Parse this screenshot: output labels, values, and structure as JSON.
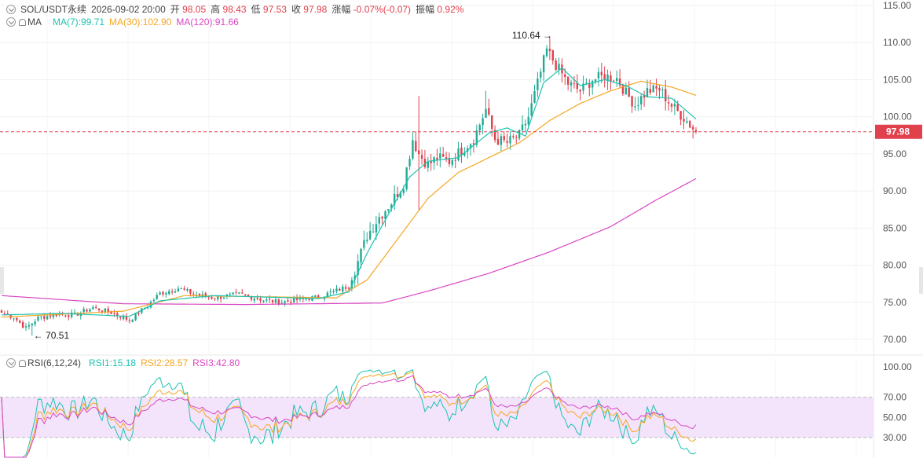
{
  "header": {
    "symbol": "SOL/USDT永续",
    "datetime": "2026-09-02 20:00",
    "open_label": "开",
    "open": "98.05",
    "high_label": "高",
    "high": "98.43",
    "low_label": "低",
    "low": "97.53",
    "close_label": "收",
    "close": "97.98",
    "change_label": "涨幅",
    "change": "-0.07%(-0.07)",
    "amp_label": "振幅",
    "amp": "0.92%"
  },
  "ma_legend": {
    "label": "MA",
    "ma7": "MA(7):99.71",
    "ma30": "MA(30):102.90",
    "ma120": "MA(120):91.66"
  },
  "rsi_legend": {
    "label": "RSI(6,12,24)",
    "rsi1": "RSI1:15.18",
    "rsi2": "RSI2:28.57",
    "rsi3": "RSI3:42.80"
  },
  "colors": {
    "up": "#22ab94",
    "down": "#e0414d",
    "ma7": "#1cc3b2",
    "ma30": "#f5a623",
    "ma120": "#d946c2",
    "rsi1": "#1cc3b2",
    "rsi2": "#f5a623",
    "rsi3": "#d946c2",
    "rsi_band": "#f3e4fb",
    "current_price": "#e0414d"
  },
  "chart_data": [
    {
      "type": "candlestick",
      "pair": "SOL/USDT",
      "y_axis_ticks": [
        "115.00",
        "110.00",
        "105.00",
        "100.00",
        "95.00",
        "90.00",
        "85.00",
        "80.00",
        "75.00",
        "70.00"
      ],
      "ylim": [
        69,
        116
      ],
      "current_price": "97.98",
      "high_marker": "110.64",
      "low_marker": "70.51",
      "anchors_close": [
        [
          0,
          73.6
        ],
        [
          4,
          73.0
        ],
        [
          8,
          71.5
        ],
        [
          12,
          72.9
        ],
        [
          18,
          73.4
        ],
        [
          24,
          73.3
        ],
        [
          30,
          74.3
        ],
        [
          36,
          73.6
        ],
        [
          42,
          72.6
        ],
        [
          48,
          74.6
        ],
        [
          52,
          76.2
        ],
        [
          58,
          76.9
        ],
        [
          64,
          76.0
        ],
        [
          70,
          75.6
        ],
        [
          78,
          76.1
        ],
        [
          86,
          75.3
        ],
        [
          92,
          75.0
        ],
        [
          98,
          75.4
        ],
        [
          104,
          75.7
        ],
        [
          110,
          76.6
        ],
        [
          114,
          77.2
        ],
        [
          117,
          80.5
        ],
        [
          120,
          84.0
        ],
        [
          124,
          86.5
        ],
        [
          128,
          88.5
        ],
        [
          132,
          91.0
        ],
        [
          135,
          97.0
        ],
        [
          137,
          95.0
        ],
        [
          140,
          93.5
        ],
        [
          143,
          94.5
        ],
        [
          147,
          94.0
        ],
        [
          151,
          95.5
        ],
        [
          155,
          97.0
        ],
        [
          159,
          101.0
        ],
        [
          162,
          97.0
        ],
        [
          166,
          96.5
        ],
        [
          170,
          97.5
        ],
        [
          173,
          100.0
        ],
        [
          176,
          104.5
        ],
        [
          179,
          109.0
        ],
        [
          182,
          107.0
        ],
        [
          186,
          104.5
        ],
        [
          190,
          103.5
        ],
        [
          194,
          105.0
        ],
        [
          198,
          105.5
        ],
        [
          202,
          105.2
        ],
        [
          205,
          103.2
        ],
        [
          208,
          101.6
        ],
        [
          212,
          103.5
        ],
        [
          216,
          103.7
        ],
        [
          220,
          101.5
        ],
        [
          224,
          99.9
        ],
        [
          228,
          97.98
        ]
      ],
      "ma7": [
        [
          0,
          73.3
        ],
        [
          20,
          73.5
        ],
        [
          42,
          73.1
        ],
        [
          52,
          75.2
        ],
        [
          70,
          75.9
        ],
        [
          104,
          75.5
        ],
        [
          114,
          76.4
        ],
        [
          120,
          81.6
        ],
        [
          128,
          87.6
        ],
        [
          134,
          91.9
        ],
        [
          140,
          94.0
        ],
        [
          150,
          94.5
        ],
        [
          160,
          97.8
        ],
        [
          166,
          98.5
        ],
        [
          172,
          97.4
        ],
        [
          178,
          104.6
        ],
        [
          184,
          106.6
        ],
        [
          190,
          104.2
        ],
        [
          198,
          105.0
        ],
        [
          205,
          104.2
        ],
        [
          212,
          102.7
        ],
        [
          220,
          102.5
        ],
        [
          228,
          99.71
        ]
      ],
      "ma30": [
        [
          0,
          73.0
        ],
        [
          40,
          73.8
        ],
        [
          60,
          75.9
        ],
        [
          110,
          75.6
        ],
        [
          120,
          78.0
        ],
        [
          130,
          83.5
        ],
        [
          140,
          89.0
        ],
        [
          150,
          92.5
        ],
        [
          160,
          94.5
        ],
        [
          170,
          96.5
        ],
        [
          180,
          99.5
        ],
        [
          190,
          101.8
        ],
        [
          200,
          103.5
        ],
        [
          210,
          104.8
        ],
        [
          220,
          104.0
        ],
        [
          228,
          102.9
        ]
      ],
      "ma120": [
        [
          0,
          75.9
        ],
        [
          40,
          74.8
        ],
        [
          80,
          74.7
        ],
        [
          125,
          74.9
        ],
        [
          140,
          76.5
        ],
        [
          160,
          78.9
        ],
        [
          180,
          81.8
        ],
        [
          200,
          85.2
        ],
        [
          215,
          88.8
        ],
        [
          228,
          91.66
        ]
      ]
    },
    {
      "type": "line",
      "indicator": "RSI(6,12,24)",
      "y_axis_ticks": [
        "100.00",
        "70.00",
        "50.00",
        "30.00"
      ],
      "ylim": [
        15,
        100
      ],
      "band": [
        30,
        70
      ],
      "series": [
        {
          "name": "RSI1",
          "last": 15.18
        },
        {
          "name": "RSI2",
          "last": 28.57
        },
        {
          "name": "RSI3",
          "last": 42.8
        }
      ]
    }
  ]
}
